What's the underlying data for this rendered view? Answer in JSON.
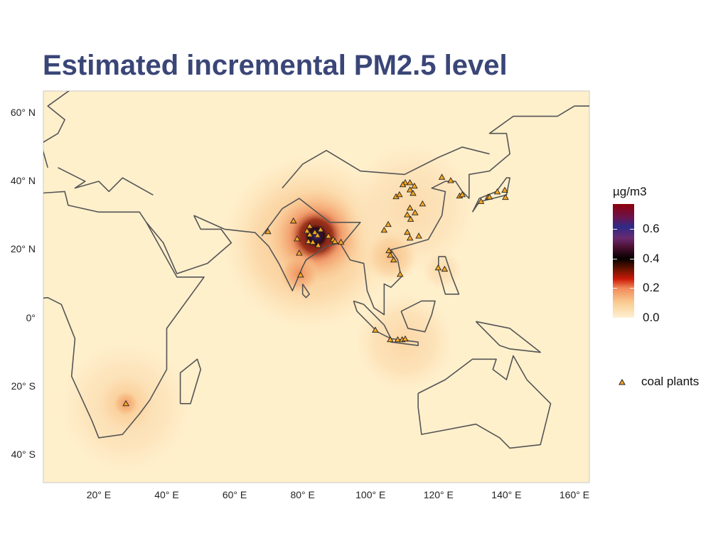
{
  "title": "Estimated incremental PM2.5 level",
  "chart_data": {
    "type": "map",
    "title": "Estimated incremental PM2.5 level",
    "lon_range": [
      3.7,
      164.4
    ],
    "lat_range": [
      -48.1,
      66.4
    ],
    "x_ticks": [
      {
        "value": 20,
        "label": "20° E"
      },
      {
        "value": 40,
        "label": "40° E"
      },
      {
        "value": 60,
        "label": "60° E"
      },
      {
        "value": 80,
        "label": "80° E"
      },
      {
        "value": 100,
        "label": "100° E"
      },
      {
        "value": 120,
        "label": "120° E"
      },
      {
        "value": 140,
        "label": "140° E"
      },
      {
        "value": 160,
        "label": "160° E"
      }
    ],
    "y_ticks": [
      {
        "value": 60,
        "label": "60° N"
      },
      {
        "value": 40,
        "label": "40° N"
      },
      {
        "value": 20,
        "label": "20° N"
      },
      {
        "value": 0,
        "label": "0°"
      },
      {
        "value": -20,
        "label": "20° S"
      },
      {
        "value": -40,
        "label": "40° S"
      }
    ],
    "legend": {
      "colorbar_title": "µg/m3",
      "colorbar_range": [
        0,
        0.77
      ],
      "colorbar_ticks": [
        {
          "value": 0.0,
          "label": "0.0"
        },
        {
          "value": 0.2,
          "label": "0.2"
        },
        {
          "value": 0.4,
          "label": "0.4"
        },
        {
          "value": 0.6,
          "label": "0.6"
        }
      ],
      "points_label": "coal plants",
      "point_color": "#f5a623"
    },
    "hotspots": [
      {
        "lon": 82,
        "lat": 22,
        "radius": 26,
        "level": 0.12
      },
      {
        "lon": 84,
        "lat": 24,
        "radius": 14,
        "level": 0.25
      },
      {
        "lon": 84,
        "lat": 24,
        "radius": 8,
        "level": 0.45
      },
      {
        "lon": 84,
        "lat": 24,
        "radius": 4,
        "level": 0.6
      },
      {
        "lon": 79,
        "lat": 13,
        "radius": 6,
        "level": 0.2
      },
      {
        "lon": 112,
        "lat": 32,
        "radius": 20,
        "level": 0.06
      },
      {
        "lon": 106,
        "lat": 18,
        "radius": 8,
        "level": 0.12
      },
      {
        "lon": 110,
        "lat": -7,
        "radius": 15,
        "level": 0.07
      },
      {
        "lon": 121,
        "lat": 14,
        "radius": 6,
        "level": 0.06
      },
      {
        "lon": 28,
        "lat": -26,
        "radius": 20,
        "level": 0.06
      },
      {
        "lon": 28,
        "lat": -25,
        "radius": 9,
        "level": 0.1
      },
      {
        "lon": 28,
        "lat": -25,
        "radius": 4,
        "level": 0.18
      }
    ],
    "coal_plants": [
      [
        82.1,
        26.9
      ],
      [
        85.3,
        25.9
      ],
      [
        81.3,
        25.5
      ],
      [
        83.6,
        25.1
      ],
      [
        82.1,
        24.4
      ],
      [
        84.4,
        24.2
      ],
      [
        87.6,
        24.0
      ],
      [
        81.7,
        22.4
      ],
      [
        83.0,
        22.2
      ],
      [
        84.6,
        21.3
      ],
      [
        89.0,
        23.0
      ],
      [
        89.5,
        22.4
      ],
      [
        91.3,
        22.2
      ],
      [
        78.4,
        23.2
      ],
      [
        79.0,
        19.0
      ],
      [
        79.4,
        12.6
      ],
      [
        77.3,
        28.4
      ],
      [
        69.8,
        25.3
      ],
      [
        105.4,
        19.7
      ],
      [
        105.8,
        18.4
      ],
      [
        106.8,
        17.0
      ],
      [
        108.7,
        12.8
      ],
      [
        110.2,
        39.6
      ],
      [
        111.6,
        39.6
      ],
      [
        109.5,
        39.0
      ],
      [
        112.9,
        38.6
      ],
      [
        111.6,
        37.5
      ],
      [
        112.5,
        36.5
      ],
      [
        107.5,
        35.5
      ],
      [
        108.5,
        36.1
      ],
      [
        115.3,
        33.4
      ],
      [
        111.6,
        32.2
      ],
      [
        113.1,
        30.8
      ],
      [
        110.8,
        30.2
      ],
      [
        111.8,
        28.9
      ],
      [
        105.2,
        27.4
      ],
      [
        104.0,
        25.7
      ],
      [
        110.8,
        25.1
      ],
      [
        114.2,
        24.0
      ],
      [
        111.6,
        23.4
      ],
      [
        119.9,
        14.7
      ],
      [
        121.8,
        14.3
      ],
      [
        121.0,
        41.2
      ],
      [
        123.6,
        40.2
      ],
      [
        126.2,
        35.7
      ],
      [
        127.0,
        36.1
      ],
      [
        132.5,
        34.1
      ],
      [
        134.6,
        35.4
      ],
      [
        137.3,
        36.9
      ],
      [
        139.5,
        37.4
      ],
      [
        139.7,
        35.3
      ],
      [
        135.0,
        35.4
      ],
      [
        101.4,
        -3.5
      ],
      [
        105.8,
        -6.3
      ],
      [
        108.0,
        -6.3
      ],
      [
        109.3,
        -6.3
      ],
      [
        110.2,
        -6.1
      ],
      [
        28.0,
        -25.0
      ]
    ]
  }
}
